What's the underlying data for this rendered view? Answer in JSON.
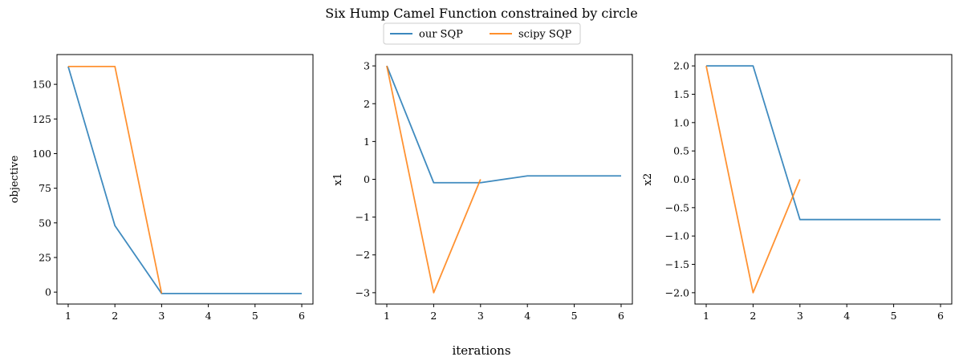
{
  "figure": {
    "title": "Six Hump Camel Function constrained by circle",
    "xlabel": "iterations"
  },
  "legend": {
    "placement": "upper-center",
    "entries": [
      {
        "name": "our SQP",
        "color": "#1f77b4"
      },
      {
        "name": "scipy SQP",
        "color": "#ff7f0e"
      }
    ]
  },
  "chart_data": [
    {
      "type": "line",
      "ylabel": "objective",
      "xlim": [
        0.76,
        6.24
      ],
      "ylim": [
        -8.6,
        171.5
      ],
      "xticks": [
        1,
        2,
        3,
        4,
        5,
        6
      ],
      "yticks": [
        0,
        25,
        50,
        75,
        100,
        125,
        150
      ],
      "series": [
        {
          "name": "our SQP",
          "color": "#1f77b4",
          "x": [
            1,
            2,
            3,
            4,
            5,
            6
          ],
          "y": [
            162.9,
            48.0,
            -1.0,
            -1.0,
            -1.0,
            -1.0
          ]
        },
        {
          "name": "scipy SQP",
          "color": "#ff7f0e",
          "x": [
            1,
            2,
            3
          ],
          "y": [
            162.9,
            162.9,
            -1.0
          ]
        }
      ]
    },
    {
      "type": "line",
      "ylabel": "x1",
      "xlim": [
        0.76,
        6.24
      ],
      "ylim": [
        -3.3,
        3.3
      ],
      "xticks": [
        1,
        2,
        3,
        4,
        5,
        6
      ],
      "yticks": [
        -3,
        -2,
        -1,
        0,
        1,
        2,
        3
      ],
      "ytick_labels": [
        "−3",
        "−2",
        "−1",
        "0",
        "1",
        "2",
        "3"
      ],
      "series": [
        {
          "name": "our SQP",
          "color": "#1f77b4",
          "x": [
            1,
            2,
            3,
            4,
            5,
            6
          ],
          "y": [
            3.0,
            -0.09,
            -0.09,
            0.09,
            0.09,
            0.09
          ]
        },
        {
          "name": "scipy SQP",
          "color": "#ff7f0e",
          "x": [
            1,
            2,
            3
          ],
          "y": [
            3.0,
            -3.0,
            0.0
          ]
        }
      ]
    },
    {
      "type": "line",
      "ylabel": "x2",
      "xlim": [
        0.76,
        6.24
      ],
      "ylim": [
        -2.2,
        2.2
      ],
      "xticks": [
        1,
        2,
        3,
        4,
        5,
        6
      ],
      "yticks": [
        -2.0,
        -1.5,
        -1.0,
        -0.5,
        0.0,
        0.5,
        1.0,
        1.5,
        2.0
      ],
      "ytick_labels": [
        "−2.0",
        "−1.5",
        "−1.0",
        "−0.5",
        "0.0",
        "0.5",
        "1.0",
        "1.5",
        "2.0"
      ],
      "series": [
        {
          "name": "our SQP",
          "color": "#1f77b4",
          "x": [
            1,
            2,
            3,
            4,
            5,
            6
          ],
          "y": [
            2.0,
            2.0,
            -0.71,
            -0.71,
            -0.71,
            -0.71
          ]
        },
        {
          "name": "scipy SQP",
          "color": "#ff7f0e",
          "x": [
            1,
            2,
            3
          ],
          "y": [
            2.0,
            -2.0,
            0.0
          ]
        }
      ]
    }
  ]
}
